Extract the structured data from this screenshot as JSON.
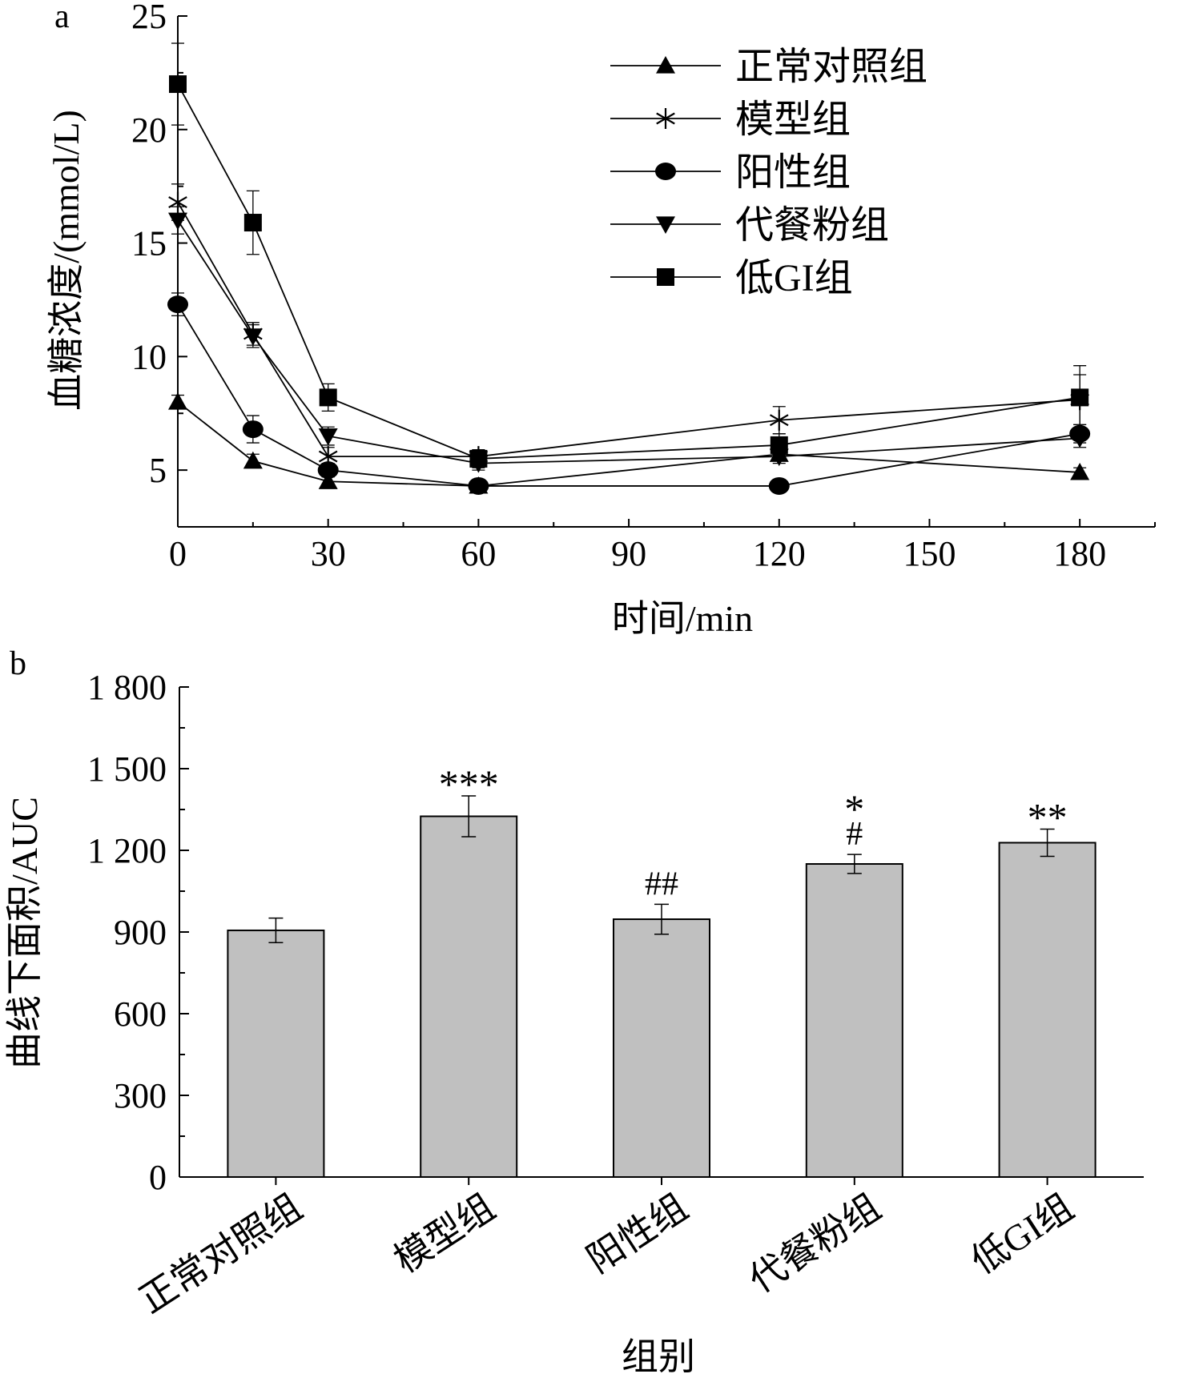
{
  "chart_data": [
    {
      "panel_label": "a",
      "type": "line",
      "xlabel": "时间/min",
      "ylabel": "血糖浓度/(mmol/L)",
      "xlim": [
        0,
        195
      ],
      "ylim": [
        2.5,
        25
      ],
      "x_ticks": [
        0,
        30,
        60,
        90,
        120,
        150,
        180
      ],
      "y_ticks": [
        5,
        10,
        15,
        20,
        25
      ],
      "x_tick_labels": [
        "0",
        "30",
        "60",
        "90",
        "120",
        "150",
        "180"
      ],
      "y_tick_labels": [
        "5",
        "10",
        "15",
        "20",
        "25"
      ],
      "legend_position": "top-right",
      "x": [
        0,
        15,
        30,
        60,
        120,
        180
      ],
      "series": [
        {
          "name": "正常对照组",
          "marker": "triangle-up",
          "values": [
            8.0,
            5.4,
            4.5,
            4.3,
            5.7,
            4.9
          ],
          "errors": [
            0.3,
            0.3,
            0.2,
            0.2,
            0.3,
            0.2
          ]
        },
        {
          "name": "模型组",
          "marker": "asterisk",
          "values": [
            16.8,
            11.0,
            5.6,
            5.6,
            7.2,
            8.1
          ],
          "errors": [
            0.8,
            0.5,
            0.4,
            0.3,
            0.6,
            1.1
          ]
        },
        {
          "name": "阳性组",
          "marker": "circle",
          "values": [
            12.3,
            6.8,
            5.0,
            4.3,
            4.3,
            6.6
          ],
          "errors": [
            0.5,
            0.6,
            0.3,
            0.2,
            0.2,
            0.4
          ]
        },
        {
          "name": "代餐粉组",
          "marker": "triangle-down",
          "values": [
            16.0,
            10.9,
            6.5,
            5.3,
            5.6,
            6.4
          ],
          "errors": [
            0.6,
            0.5,
            0.4,
            0.3,
            0.3,
            0.4
          ]
        },
        {
          "name": "低GI组",
          "marker": "square",
          "values": [
            22.0,
            15.9,
            8.2,
            5.5,
            6.1,
            8.2
          ],
          "errors": [
            1.8,
            1.4,
            0.6,
            0.4,
            0.5,
            1.4
          ]
        }
      ]
    },
    {
      "panel_label": "b",
      "type": "bar",
      "xlabel": "组别",
      "ylabel": "曲线下面积/AUC",
      "ylim": [
        0,
        1800
      ],
      "y_ticks": [
        0,
        300,
        600,
        900,
        1200,
        1500,
        1800
      ],
      "y_tick_labels": [
        "0",
        "300",
        "600",
        "900",
        "1 200",
        "1 500",
        "1 800"
      ],
      "bar_color": "#c0c0c0",
      "categories": [
        "正常对照组",
        "模型组",
        "阳性组",
        "代餐粉组",
        "低GI组"
      ],
      "values": [
        906,
        1325,
        947,
        1150,
        1228
      ],
      "errors": [
        45,
        75,
        55,
        35,
        50
      ],
      "annotations": [
        {
          "category": "模型组",
          "lines": [
            "***"
          ]
        },
        {
          "category": "阳性组",
          "lines": [
            "##"
          ]
        },
        {
          "category": "代餐粉组",
          "lines": [
            "*",
            "#"
          ]
        },
        {
          "category": "低GI组",
          "lines": [
            "**"
          ]
        }
      ]
    }
  ]
}
